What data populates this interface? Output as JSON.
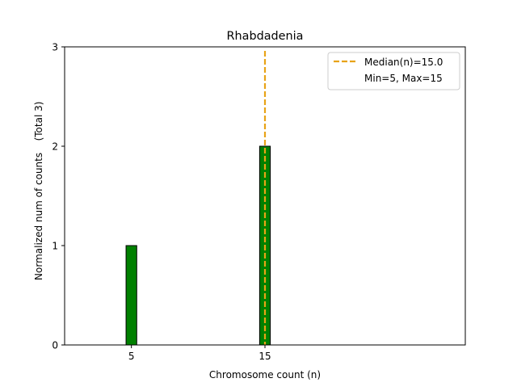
{
  "chart_data": {
    "type": "bar",
    "title": "Rhabdadenia",
    "xlabel": "Chromosome count (n)",
    "ylabel": "Normalized num of counts",
    "ylabel_suffix": "(Total 3)",
    "xlim": [
      0,
      30
    ],
    "ylim": [
      0,
      3
    ],
    "x_ticks": [
      5,
      15
    ],
    "y_ticks": [
      0,
      1,
      2,
      3
    ],
    "bar_width": 0.8,
    "bars": [
      {
        "x": 5,
        "value": 1
      },
      {
        "x": 15,
        "value": 2
      }
    ],
    "median": {
      "value": 15.0,
      "label": "Median(n)=15.0",
      "color": "#e8a317",
      "style": "dashed"
    },
    "range_label": "Min=5, Max=15",
    "legend_position": "top-right",
    "grid": false,
    "colors": {
      "bar_fill": "#008000",
      "bar_edge": "#000000",
      "axes": "#000000"
    }
  }
}
